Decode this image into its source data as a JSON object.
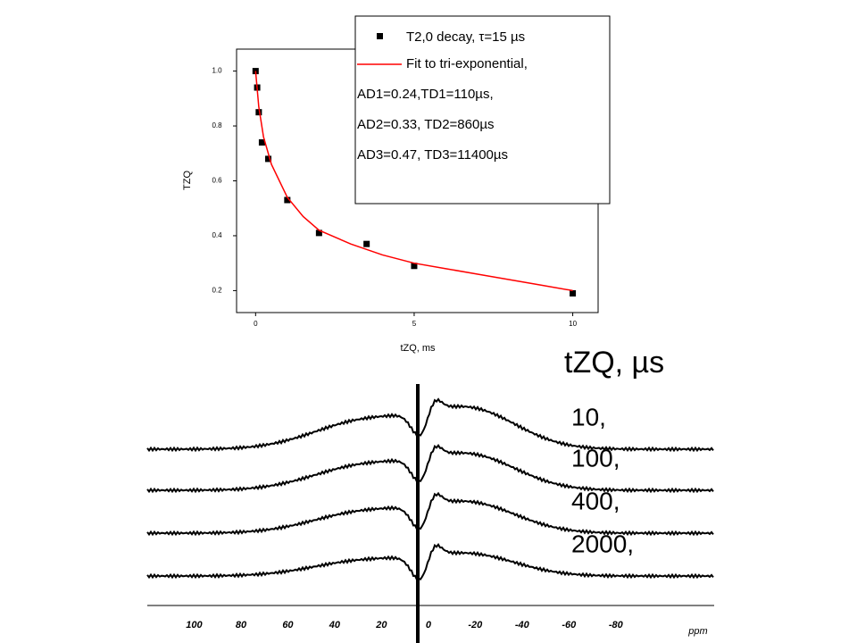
{
  "chart_data": [
    {
      "type": "scatter",
      "xlabel": "tZQ, ms",
      "ylabel": "TZQ",
      "xlim": [
        -0.6,
        10.8
      ],
      "ylim": [
        0.12,
        1.08
      ],
      "xticks": [
        0,
        5,
        10
      ],
      "yticks": [
        0.2,
        0.4,
        0.6,
        0.8,
        {
          "value": 1.0,
          "label": "1.0"
        }
      ],
      "series": [
        {
          "name": "T2,0  decay, τ=15 µs",
          "kind": "scatter",
          "color": "#000000",
          "x": [
            0,
            0.05,
            0.1,
            0.2,
            0.4,
            1,
            2,
            3.5,
            5,
            10
          ],
          "values": [
            1.0,
            0.94,
            0.85,
            0.74,
            0.68,
            0.53,
            0.41,
            0.37,
            0.29,
            0.19
          ]
        },
        {
          "name": "Fit to tri-exponential,",
          "kind": "line",
          "color": "#ff0000",
          "x": [
            0,
            0.1,
            0.25,
            0.5,
            1,
            1.5,
            2,
            3,
            4,
            5,
            6,
            7,
            8,
            9,
            10
          ],
          "values": [
            1.0,
            0.87,
            0.76,
            0.66,
            0.54,
            0.47,
            0.42,
            0.37,
            0.33,
            0.3,
            0.28,
            0.26,
            0.24,
            0.22,
            0.2
          ]
        }
      ],
      "annotations": [
        "AD1=0.24,TD1=110µs,",
        "AD2=0.33, TD2=860µs",
        "AD3=0.47, TD3=11400µs"
      ]
    },
    {
      "type": "spectra",
      "title": "tZQ, µs",
      "xlabel": "ppm",
      "xlim": [
        120,
        -122
      ],
      "xticks": [
        100,
        80,
        60,
        40,
        20,
        0,
        -20,
        -40,
        -60,
        -80
      ],
      "series": [
        {
          "name": "10,"
        },
        {
          "name": "100,"
        },
        {
          "name": "400,"
        },
        {
          "name": "2000,"
        }
      ]
    }
  ]
}
